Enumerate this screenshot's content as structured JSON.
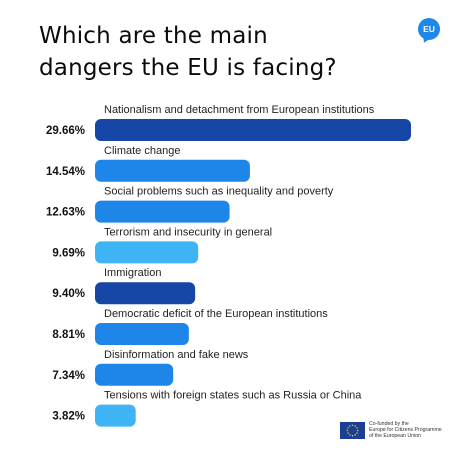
{
  "title": "Which are the main dangers the EU is facing?",
  "badge": {
    "label": "EU",
    "color": "#1f87e6"
  },
  "cofunding": {
    "line1": "Co-funded by the",
    "line2": "Europe for Citizens Programme",
    "line3": "of the European Union"
  },
  "colors": {
    "dark_blue": "#1646a6",
    "mid_blue": "#1e86e8",
    "light_blue": "#3fb4f4"
  },
  "chart_data": {
    "type": "bar",
    "orientation": "horizontal",
    "title": "Which are the main dangers the EU is facing?",
    "xlabel": "",
    "ylabel": "",
    "grid": false,
    "categories": [
      "Nationalism and detachment from European institutions",
      "Climate change",
      "Social problems such as inequality and poverty",
      "Terrorism and insecurity in general",
      "Immigration",
      "Democratic deficit of the European institutions",
      "Disinformation and fake news",
      "Tensions with foreign states such as Russia or China"
    ],
    "values": [
      29.66,
      14.54,
      12.63,
      9.69,
      9.4,
      8.81,
      7.34,
      3.82
    ],
    "value_labels": [
      "29.66%",
      "14.54%",
      "12.63%",
      "9.69%",
      "9.40%",
      "8.81%",
      "7.34%",
      "3.82%"
    ],
    "bar_colors": [
      "#1646a6",
      "#1e86e8",
      "#1e86e8",
      "#3fb4f4",
      "#1646a6",
      "#1e86e8",
      "#1e86e8",
      "#3fb4f4"
    ]
  }
}
